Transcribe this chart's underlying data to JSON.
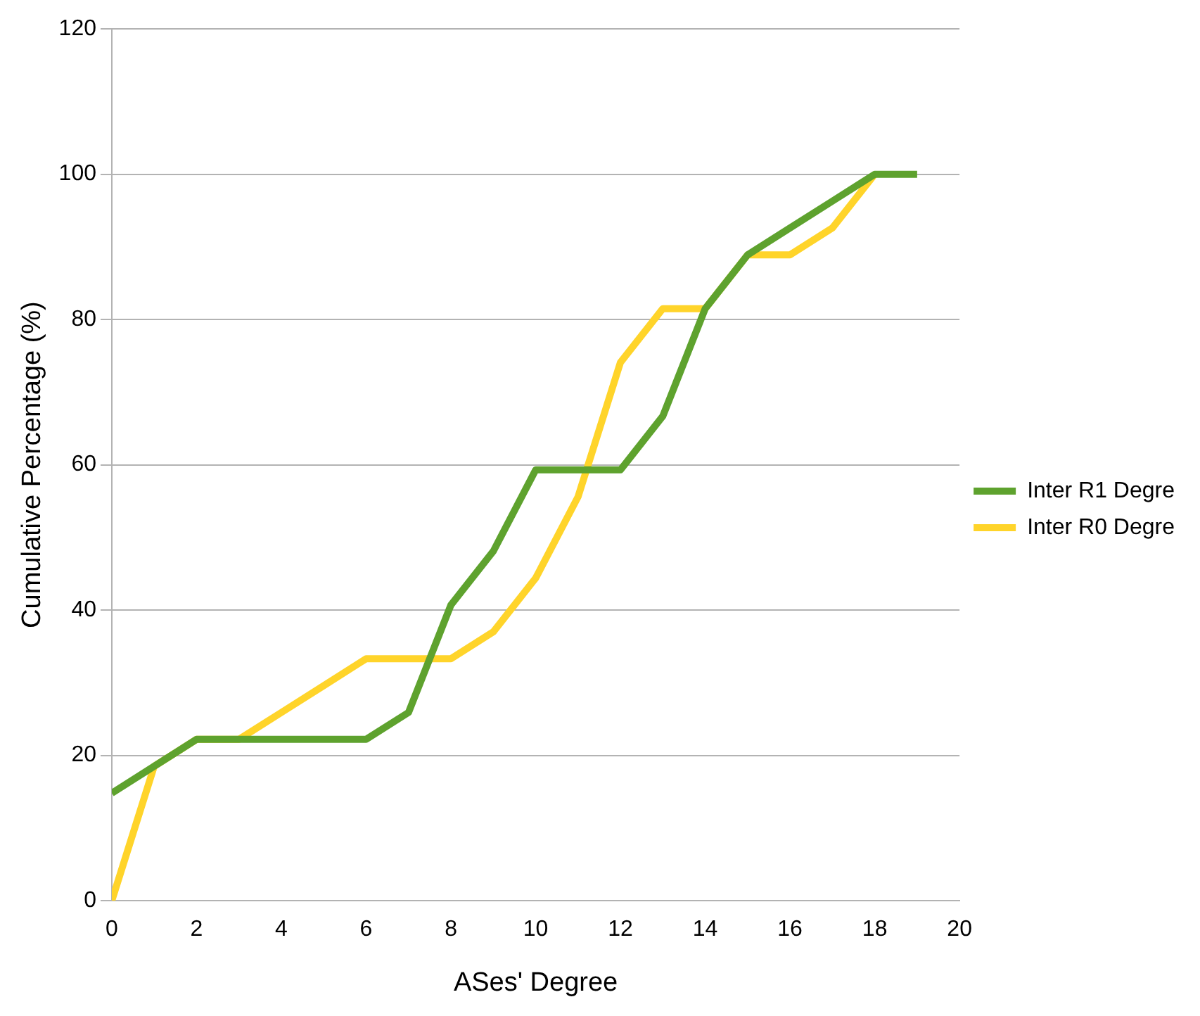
{
  "chart_data": {
    "type": "line",
    "xlabel": "ASes' Degree",
    "ylabel": "Cumulative Percentage (%)",
    "xlim": [
      0,
      20
    ],
    "xticks": [
      0,
      2,
      4,
      6,
      8,
      10,
      12,
      14,
      16,
      18,
      20
    ],
    "ylim": [
      0,
      120
    ],
    "yticks": [
      0,
      20,
      40,
      60,
      80,
      100,
      120
    ],
    "grid": "y",
    "legend": "right",
    "marker": "none",
    "line_style": "solid",
    "series": [
      {
        "name": "Inter R1 Degre",
        "color": "#5ea22e",
        "x": [
          0,
          1,
          2,
          3,
          4,
          5,
          6,
          7,
          8,
          9,
          10,
          11,
          12,
          13,
          14,
          15,
          16,
          17,
          18,
          19
        ],
        "values": [
          14.8,
          18.5,
          22.2,
          22.2,
          22.2,
          22.2,
          22.2,
          25.9,
          40.7,
          48.1,
          59.3,
          59.3,
          59.3,
          66.7,
          81.5,
          88.9,
          92.6,
          96.3,
          100,
          100
        ]
      },
      {
        "name": "Inter R0 Degre",
        "color": "#ffd42a",
        "x": [
          0,
          1,
          2,
          3,
          4,
          5,
          6,
          7,
          8,
          9,
          10,
          11,
          12,
          13,
          14,
          15,
          16,
          17,
          18
        ],
        "values": [
          0,
          18.5,
          22.2,
          22.2,
          25.9,
          29.6,
          33.3,
          33.3,
          33.3,
          37,
          44.4,
          55.6,
          74.1,
          81.5,
          81.5,
          88.9,
          88.9,
          92.6,
          100
        ]
      }
    ]
  }
}
